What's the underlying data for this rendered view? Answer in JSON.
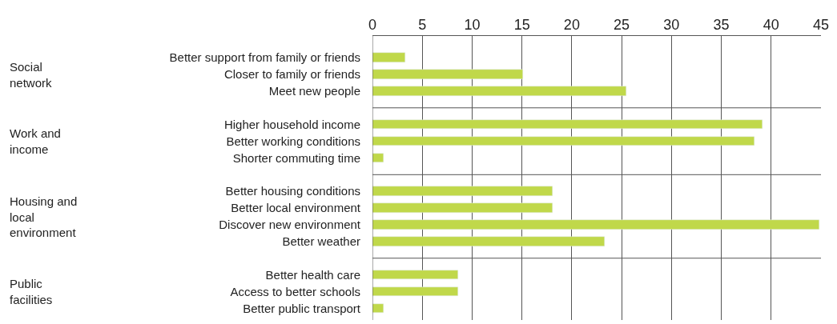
{
  "chart_data": {
    "type": "bar",
    "orientation": "horizontal",
    "categories": [
      "Better support from family or friends",
      "Closer to family or friends",
      "Meet new people",
      null,
      "Higher household income",
      "Better working conditions",
      "Shorter commuting time",
      null,
      "Better housing conditions",
      "Better local environment",
      "Discover new environment",
      "Better weather",
      null,
      "Better health care",
      "Access to better schools",
      "Better public transport"
    ],
    "values": [
      3.3,
      15.1,
      25.5,
      null,
      39.1,
      38.3,
      1.1,
      null,
      18.1,
      18.1,
      44.8,
      23.3,
      null,
      8.6,
      8.6,
      1.1
    ],
    "color": "#c0d84a",
    "annotations": [
      "Social network",
      "Work and income",
      "Housing and local environment",
      "Public facilities"
    ],
    "xlim": [
      0,
      45
    ],
    "xticks": [
      0,
      5,
      10,
      15,
      20,
      25,
      30,
      35,
      40,
      45
    ],
    "grid": "x",
    "legend": false
  }
}
